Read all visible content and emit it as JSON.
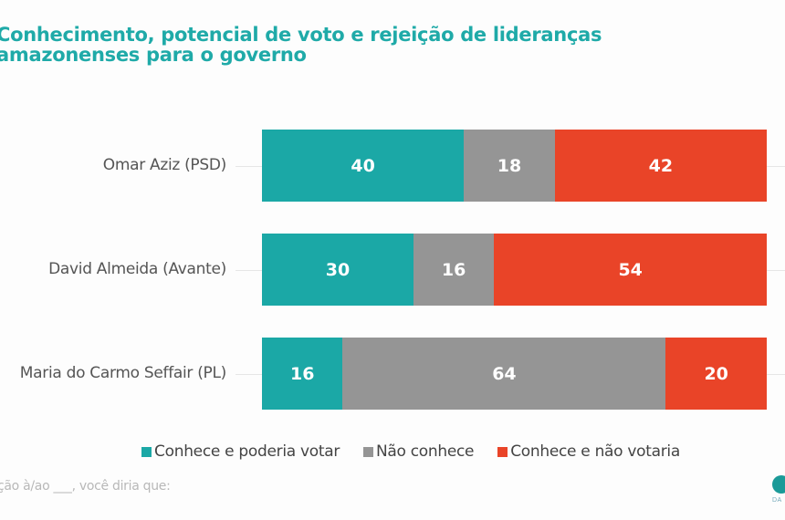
{
  "chart_data": {
    "type": "bar",
    "orientation": "horizontal",
    "stacked": true,
    "title": "Conhecimento, potencial de voto e rejeição de lideranças amazonenses para o governo",
    "categories": [
      "Omar Aziz (PSD)",
      "David Almeida (Avante)",
      "Maria do Carmo Seffair (PL)"
    ],
    "series": [
      {
        "name": "Conhece e poderia votar",
        "color": "#1ba8a6",
        "values": [
          40,
          30,
          16
        ]
      },
      {
        "name": "Não conhece",
        "color": "#959595",
        "values": [
          18,
          16,
          64
        ]
      },
      {
        "name": "Conhece e não votaria",
        "color": "#e94428",
        "values": [
          42,
          54,
          20
        ]
      }
    ],
    "xlim": [
      0,
      100
    ],
    "xlabel": "",
    "ylabel": "",
    "grid": false,
    "legend_position": "bottom"
  },
  "footnote": "ção à/ao ___, você diria que:",
  "logo_text": "DA"
}
